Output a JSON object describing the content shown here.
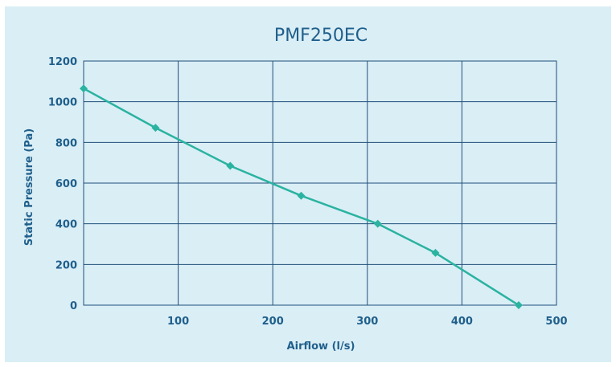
{
  "chart_data": {
    "type": "line",
    "title": "PMF250EC",
    "xlabel": "Airflow (l/s)",
    "ylabel": "Static Pressure (Pa)",
    "xlim": [
      0,
      500
    ],
    "ylim": [
      0,
      1200
    ],
    "x_ticks": [
      "100",
      "200",
      "300",
      "400",
      "500"
    ],
    "y_ticks": [
      "0",
      "200",
      "400",
      "600",
      "800",
      "1000",
      "1200"
    ],
    "grid": true,
    "legend": "none",
    "series": [
      {
        "x": [
          0,
          76,
          155,
          230,
          311,
          372,
          460
        ],
        "y": [
          1065,
          872,
          685,
          538,
          400,
          257,
          0
        ]
      }
    ],
    "colors": {
      "background": "#daeef6",
      "grid": "#1f4e79",
      "line": "#2ab3a0",
      "text": "#1f5f8b"
    }
  }
}
